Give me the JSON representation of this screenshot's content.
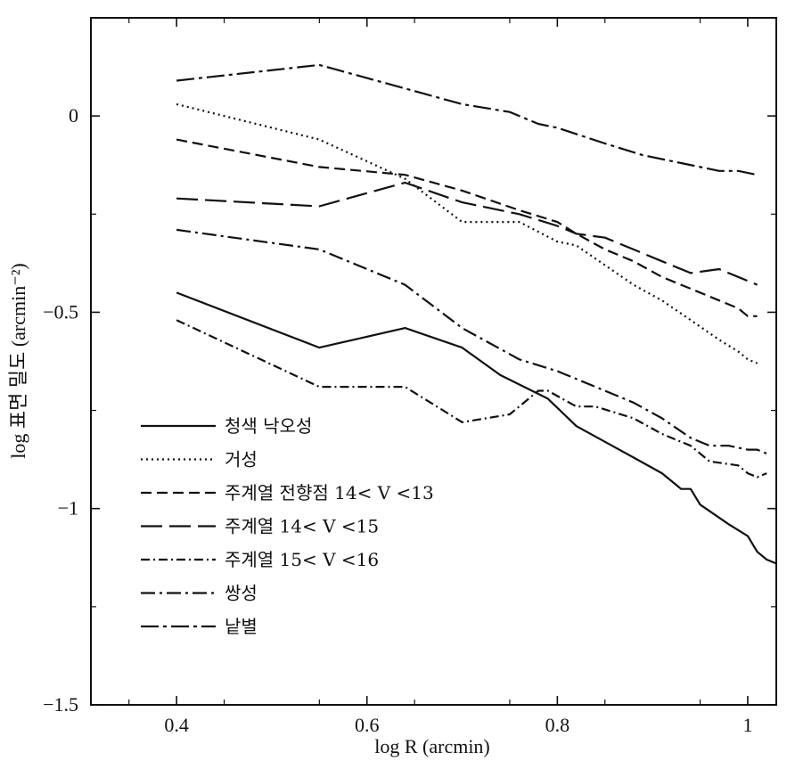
{
  "chart_data": {
    "type": "line",
    "title": "",
    "xlabel": "log R (arcmin)",
    "ylabel": "log 표면 밀도 (arcmin⁻²)",
    "xlim": [
      0.31,
      1.03
    ],
    "ylim": [
      -1.5,
      0.25
    ],
    "xticks": [
      0.4,
      0.6,
      0.8,
      1
    ],
    "xtick_labels": [
      "0.4",
      "0.6",
      "0.8",
      "1"
    ],
    "yticks": [
      0,
      -0.5,
      -1,
      -1.5
    ],
    "ytick_labels": [
      "0",
      "−0.5",
      "−1",
      "−1.5"
    ],
    "grid": false,
    "legend_position": "lower-left",
    "series": [
      {
        "name": "청색 낙오성",
        "dash": "",
        "x": [
          0.4,
          0.55,
          0.64,
          0.7,
          0.74,
          0.79,
          0.82,
          0.85,
          0.88,
          0.91,
          0.93,
          0.94,
          0.95,
          0.98,
          1.0,
          1.01,
          1.02,
          1.03
        ],
        "y": [
          -0.45,
          -0.59,
          -0.54,
          -0.59,
          -0.66,
          -0.72,
          -0.79,
          -0.83,
          -0.87,
          -0.91,
          -0.95,
          -0.95,
          -0.99,
          -1.04,
          -1.07,
          -1.11,
          -1.13,
          -1.14
        ]
      },
      {
        "name": "거성",
        "dash": "2,4",
        "x": [
          0.4,
          0.55,
          0.64,
          0.7,
          0.76,
          0.8,
          0.82,
          0.85,
          0.88,
          0.91,
          0.94,
          0.97,
          0.99,
          1.0,
          1.01
        ],
        "y": [
          0.03,
          -0.06,
          -0.16,
          -0.27,
          -0.27,
          -0.32,
          -0.33,
          -0.38,
          -0.43,
          -0.47,
          -0.52,
          -0.57,
          -0.6,
          -0.62,
          -0.63
        ]
      },
      {
        "name": "주계열 전향점 14< V <13",
        "dash": "12,6",
        "x": [
          0.4,
          0.55,
          0.64,
          0.7,
          0.76,
          0.8,
          0.82,
          0.85,
          0.88,
          0.91,
          0.94,
          0.97,
          0.99,
          1.0,
          1.01
        ],
        "y": [
          -0.06,
          -0.13,
          -0.15,
          -0.19,
          -0.24,
          -0.27,
          -0.3,
          -0.34,
          -0.37,
          -0.41,
          -0.44,
          -0.47,
          -0.49,
          -0.51,
          -0.51
        ]
      },
      {
        "name": "주계열 14< V <15",
        "dash": "24,8",
        "x": [
          0.4,
          0.55,
          0.64,
          0.7,
          0.76,
          0.8,
          0.82,
          0.85,
          0.88,
          0.91,
          0.94,
          0.97,
          0.99,
          1.0,
          1.01
        ],
        "y": [
          -0.21,
          -0.23,
          -0.17,
          -0.22,
          -0.25,
          -0.28,
          -0.3,
          -0.31,
          -0.34,
          -0.37,
          -0.4,
          -0.39,
          -0.41,
          -0.42,
          -0.43
        ]
      },
      {
        "name": "주계열 15< V <16",
        "dash": "10,4,2,4",
        "x": [
          0.4,
          0.55,
          0.64,
          0.7,
          0.75,
          0.78,
          0.79,
          0.82,
          0.84,
          0.88,
          0.91,
          0.94,
          0.96,
          0.99,
          1.0,
          1.01,
          1.02
        ],
        "y": [
          -0.52,
          -0.69,
          -0.69,
          -0.78,
          -0.76,
          -0.7,
          -0.7,
          -0.74,
          -0.74,
          -0.77,
          -0.81,
          -0.84,
          -0.88,
          -0.89,
          -0.91,
          -0.92,
          -0.91
        ]
      },
      {
        "name": "쌍성",
        "dash": "16,5,3,5",
        "x": [
          0.4,
          0.55,
          0.64,
          0.7,
          0.76,
          0.8,
          0.84,
          0.88,
          0.91,
          0.94,
          0.96,
          0.98,
          1.0,
          1.01,
          1.02
        ],
        "y": [
          -0.29,
          -0.34,
          -0.43,
          -0.54,
          -0.62,
          -0.65,
          -0.69,
          -0.73,
          -0.77,
          -0.82,
          -0.84,
          -0.84,
          -0.85,
          -0.85,
          -0.86
        ]
      },
      {
        "name": "낱별",
        "dash": "20,5,4,5",
        "x": [
          0.4,
          0.55,
          0.64,
          0.7,
          0.75,
          0.78,
          0.8,
          0.85,
          0.89,
          0.93,
          0.97,
          0.99,
          1.01
        ],
        "y": [
          0.09,
          0.13,
          0.07,
          0.03,
          0.01,
          -0.02,
          -0.03,
          -0.07,
          -0.1,
          -0.12,
          -0.14,
          -0.14,
          -0.15
        ]
      }
    ]
  }
}
